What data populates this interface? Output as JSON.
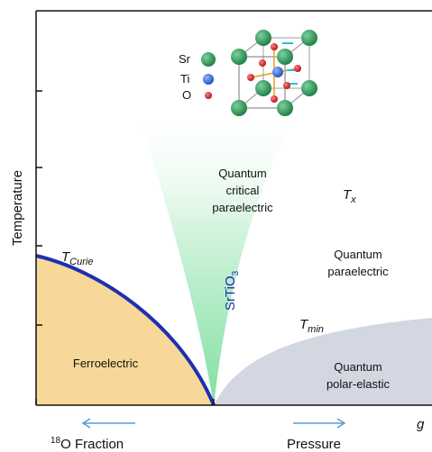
{
  "axes": {
    "y_label": "Temperature",
    "x_right_label": "g",
    "x_left_label_sup": "18",
    "x_left_label_main": "O Fraction",
    "x_right_label_text": "Pressure"
  },
  "regions": {
    "ferroelectric": "Ferroelectric",
    "qcp_line1": "Quantum",
    "qcp_line2": "critical",
    "qcp_line3": "paraelectric",
    "qpe_line1": "Quantum",
    "qpe_line2": "paraelectric",
    "qpel_line1": "Quantum",
    "qpel_line2": "polar-elastic"
  },
  "lines": {
    "t_curie_main": "T",
    "t_curie_sub": "Curie",
    "t_x_main": "T",
    "t_x_sub": "x",
    "t_min_main": "T",
    "t_min_sub": "min",
    "srtio3_a": "SrTiO",
    "srtio3_sub": "3"
  },
  "legend": {
    "sr": "Sr",
    "ti": "Ti",
    "o": "O"
  },
  "colors": {
    "ferroelectric_fill": "#f7d899",
    "polar_elastic_fill": "#d3d7e1",
    "critical_fill": "#9ee6b3",
    "curie_line": "#1f2fb0",
    "arrow": "#5b9bd5",
    "sr_atom": "#2e9e5c",
    "ti_atom": "#2f6fdc",
    "o_atom": "#d91f1f"
  }
}
